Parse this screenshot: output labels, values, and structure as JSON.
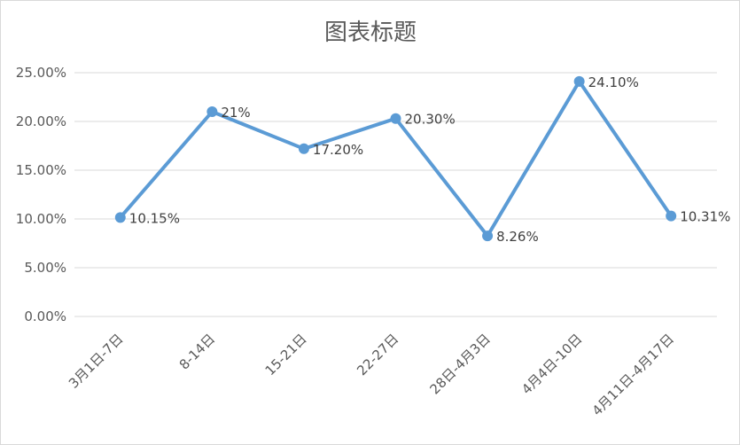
{
  "chart_data": {
    "type": "line",
    "title": "图表标题",
    "categories": [
      "3月1日-7日",
      "8-14日",
      "15-21日",
      "22-27日",
      "28日-4月3日",
      "4月4日-10日",
      "4月11日-4月17日"
    ],
    "values": [
      10.15,
      21,
      17.2,
      20.3,
      8.26,
      24.1,
      10.31
    ],
    "data_labels": [
      "10.15%",
      "21%",
      "17.20%",
      "20.30%",
      "8.26%",
      "24.10%",
      "10.31%"
    ],
    "y_ticks": [
      "0.00%",
      "5.00%",
      "10.00%",
      "15.00%",
      "20.00%",
      "25.00%"
    ],
    "ylim": [
      0,
      25
    ],
    "grid": true,
    "legend": "none",
    "line_color": "#5b9bd5",
    "grid_color": "#d9d9d9"
  }
}
